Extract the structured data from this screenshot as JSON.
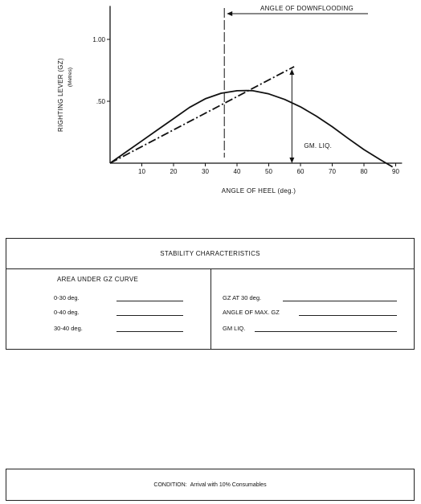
{
  "chart_data": {
    "type": "line",
    "xlabel": "ANGLE OF HEEL (deg.)",
    "ylabel": "RIGHTING LEVER (GZ)",
    "ylabel_unit": "(Metres)",
    "x_ticks": [
      10,
      20,
      30,
      40,
      50,
      60,
      70,
      80,
      90
    ],
    "y_ticks": [
      {
        "value": 0.5,
        "label": ".50"
      },
      {
        "value": 1.0,
        "label": "1.00"
      }
    ],
    "xlim": [
      0,
      92
    ],
    "ylim": [
      0,
      1.27
    ],
    "grid": false,
    "series": [
      {
        "style": "solid",
        "x": [
          0,
          5,
          10,
          15,
          20,
          25,
          30,
          35,
          40,
          43,
          45,
          50,
          55,
          60,
          65,
          70,
          75,
          80,
          85,
          89
        ],
        "y": [
          0,
          0.09,
          0.18,
          0.27,
          0.36,
          0.45,
          0.52,
          0.565,
          0.585,
          0.587,
          0.585,
          0.56,
          0.515,
          0.455,
          0.38,
          0.295,
          0.2,
          0.11,
          0.03,
          -0.03
        ]
      },
      {
        "style": "dash-dot",
        "x": [
          0,
          58
        ],
        "y": [
          0,
          0.78
        ]
      }
    ],
    "annotations": {
      "downflooding": {
        "x": 36,
        "label": "ANGLE OF DOWNFLOODING"
      },
      "gm_liq": {
        "x": 57.3,
        "y_top": 0.76,
        "label": "GM. LIQ."
      }
    }
  },
  "stability": {
    "title": "STABILITY CHARACTERISTICS",
    "area_heading": "AREA UNDER GZ CURVE",
    "left_rows": [
      "0-30  deg.",
      "0-40  deg.",
      "30-40 deg."
    ],
    "right_rows": [
      "GZ AT 30 deg.",
      "ANGLE OF MAX. GZ",
      "GM LIQ."
    ]
  },
  "condition": {
    "label": "CONDITION:",
    "value": "Arrival with 10% Consumables"
  }
}
